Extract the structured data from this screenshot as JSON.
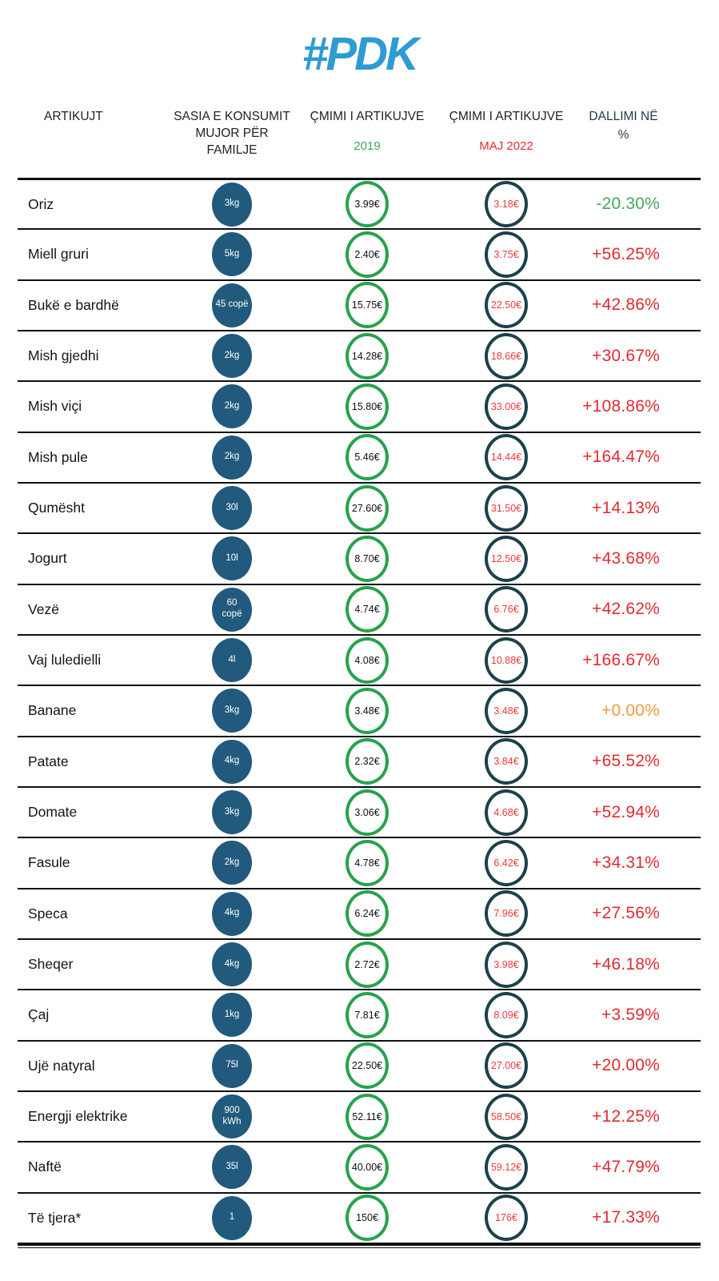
{
  "logo": "#PDK",
  "colors": {
    "logo_blue": "#2E9BD3",
    "qty_blue": "#215A7C",
    "green_ring": "#28A24C",
    "teal_ring": "#1C4149",
    "red_price": "#ED3A3F",
    "red_pct": "#E02B31",
    "green_pct": "#46A55F",
    "orange_pct": "#F09B38",
    "dallimi_teal": "#1C3B43",
    "header_dark": "#222222",
    "line_dark": "#101010"
  },
  "table": {
    "headers": {
      "items": "ARTIKUJT",
      "quantity_line1": "SASIA  E KONSUMIT",
      "quantity_line2": "MUJOR PËR FAMILJE",
      "price_2019_title": "ÇMIMI I ARTIKUJVE",
      "price_2019_sub": "2019",
      "price_2022_title": "ÇMIMI I ARTIKUJVE",
      "price_2022_sub": "MAJ 2022",
      "diff_line1": "DALLIMI NË",
      "diff_line2": "%"
    },
    "rows": [
      {
        "item": "Oriz",
        "qty": [
          "3kg"
        ],
        "price_2019": "3.99€",
        "price_2022": "3.18€",
        "diff": "-20.30%",
        "diff_color": "green"
      },
      {
        "item": "Miell gruri",
        "qty": [
          "5kg"
        ],
        "price_2019": "2.40€",
        "price_2022": "3.75€",
        "diff": "+56.25%",
        "diff_color": "red"
      },
      {
        "item": "Bukë e bardhë",
        "qty": [
          "45 copë"
        ],
        "price_2019": "15.75€",
        "price_2022": "22.50€",
        "diff": "+42.86%",
        "diff_color": "red"
      },
      {
        "item": "Mish gjedhi",
        "qty": [
          "2kg"
        ],
        "price_2019": "14.28€",
        "price_2022": "18.66€",
        "diff": "+30.67%",
        "diff_color": "red"
      },
      {
        "item": "Mish viçi",
        "qty": [
          "2kg"
        ],
        "price_2019": "15.80€",
        "price_2022": "33.00€",
        "diff": "+108.86%",
        "diff_color": "red"
      },
      {
        "item": "Mish pule",
        "qty": [
          "2kg"
        ],
        "price_2019": "5.46€",
        "price_2022": "14.44€",
        "diff": "+164.47%",
        "diff_color": "red"
      },
      {
        "item": "Qumësht",
        "qty": [
          "30l"
        ],
        "price_2019": "27.60€",
        "price_2022": "31.50€",
        "diff": "+14.13%",
        "diff_color": "red"
      },
      {
        "item": "Jogurt",
        "qty": [
          "10l"
        ],
        "price_2019": "8.70€",
        "price_2022": "12.50€",
        "diff": "+43.68%",
        "diff_color": "red"
      },
      {
        "item": "Vezë",
        "qty": [
          "60",
          "copë"
        ],
        "price_2019": "4.74€",
        "price_2022": "6.76€",
        "diff": "+42.62%",
        "diff_color": "red"
      },
      {
        "item": "Vaj luledielli",
        "qty": [
          "4l"
        ],
        "price_2019": "4.08€",
        "price_2022": "10.88€",
        "diff": "+166.67%",
        "diff_color": "red"
      },
      {
        "item": "Banane",
        "qty": [
          "3kg"
        ],
        "price_2019": "3.48€",
        "price_2022": "3.48€",
        "diff": "+0.00%",
        "diff_color": "orange"
      },
      {
        "item": "Patate",
        "qty": [
          "4kg"
        ],
        "price_2019": "2.32€",
        "price_2022": "3.84€",
        "diff": "+65.52%",
        "diff_color": "red"
      },
      {
        "item": "Domate",
        "qty": [
          "3kg"
        ],
        "price_2019": "3.06€",
        "price_2022": "4.68€",
        "diff": "+52.94%",
        "diff_color": "red"
      },
      {
        "item": "Fasule",
        "qty": [
          "2kg"
        ],
        "price_2019": "4.78€",
        "price_2022": "6.42€",
        "diff": "+34.31%",
        "diff_color": "red"
      },
      {
        "item": "Speca",
        "qty": [
          "4kg"
        ],
        "price_2019": "6.24€",
        "price_2022": "7.96€",
        "diff": "+27.56%",
        "diff_color": "red"
      },
      {
        "item": "Sheqer",
        "qty": [
          "4kg"
        ],
        "price_2019": "2.72€",
        "price_2022": "3.98€",
        "diff": "+46.18%",
        "diff_color": "red"
      },
      {
        "item": "Çaj",
        "qty": [
          "1kg"
        ],
        "price_2019": "7.81€",
        "price_2022": "8.09€",
        "diff": "+3.59%",
        "diff_color": "red"
      },
      {
        "item": "Ujë natyral",
        "qty": [
          "75l"
        ],
        "price_2019": "22.50€",
        "price_2022": "27.00€",
        "diff": "+20.00%",
        "diff_color": "red"
      },
      {
        "item": "Energji elektrike",
        "qty": [
          "900",
          "kWh"
        ],
        "price_2019": "52.11€",
        "price_2022": "58.50€",
        "diff": "+12.25%",
        "diff_color": "red"
      },
      {
        "item": "Naftë",
        "qty": [
          "35l"
        ],
        "price_2019": "40.00€",
        "price_2022": "59.12€",
        "diff": "+47.79%",
        "diff_color": "red"
      },
      {
        "item": "Të tjera*",
        "qty": [
          "1"
        ],
        "price_2019": "150€",
        "price_2022": "176€",
        "diff": "+17.33%",
        "diff_color": "red"
      }
    ]
  }
}
